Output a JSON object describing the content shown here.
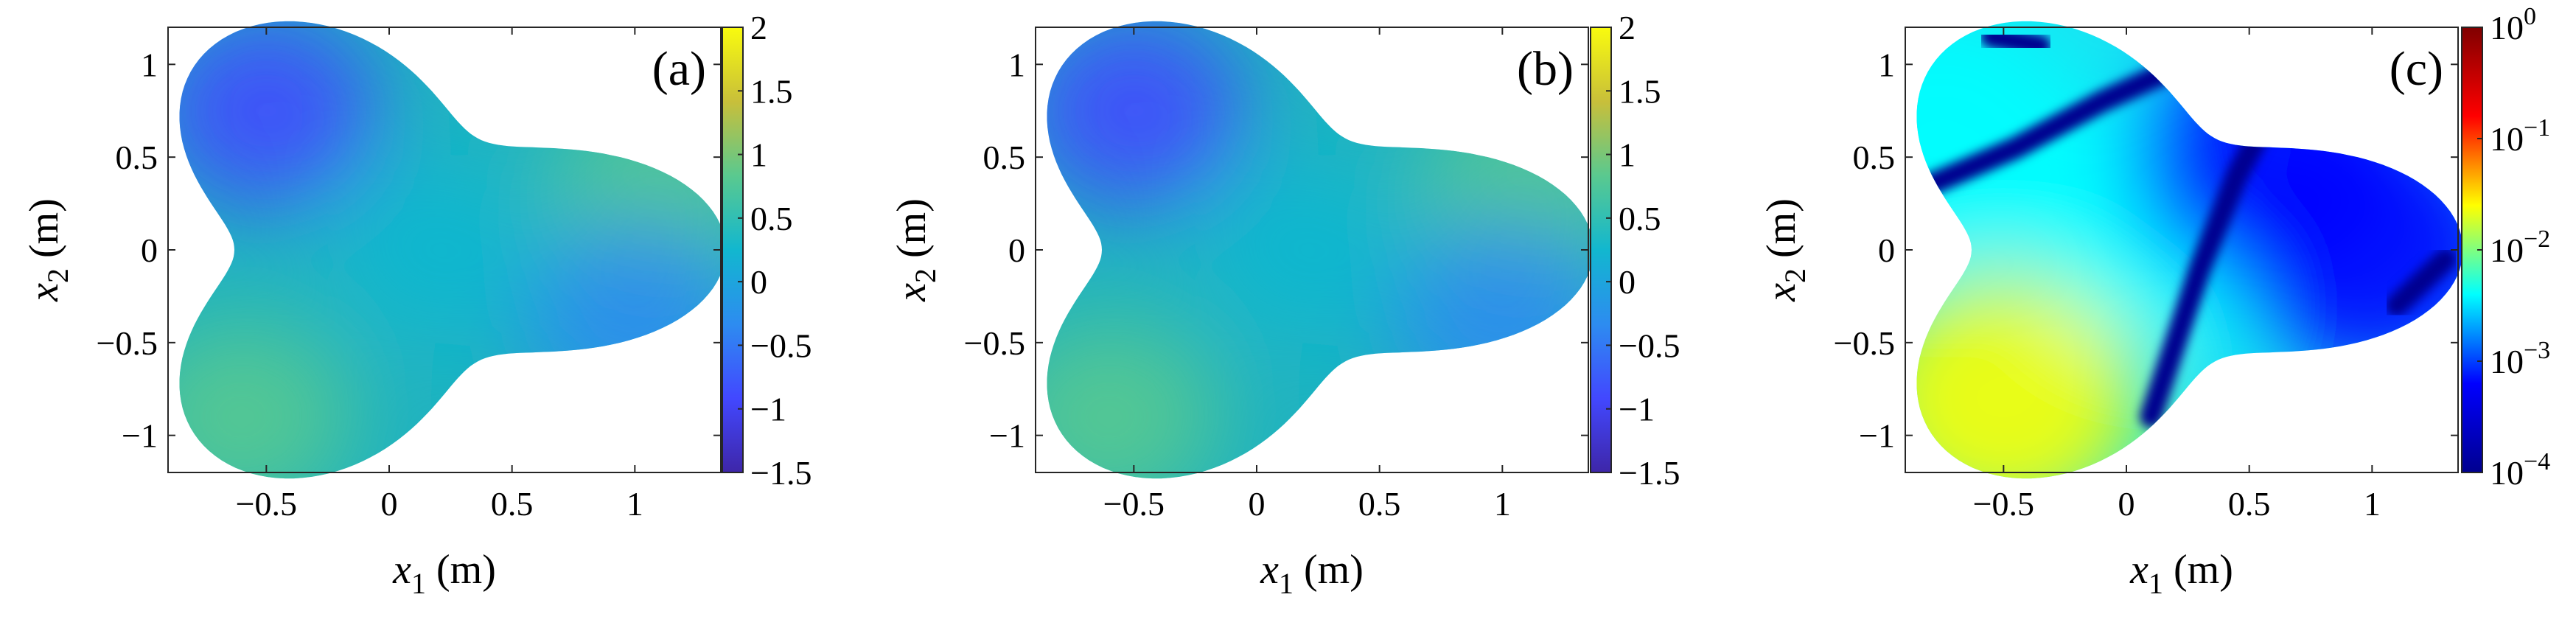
{
  "colors": {
    "parula": [
      "#3e26a8",
      "#4248ff",
      "#2d8cf0",
      "#12b7cf",
      "#5ac98f",
      "#c8bf3a",
      "#f9fb0e"
    ],
    "jet": [
      "#00008f",
      "#0000ff",
      "#00ffff",
      "#ffff00",
      "#ff0000",
      "#800000"
    ]
  },
  "chart_data": [
    {
      "type": "heatmap",
      "panel_label": "(a)",
      "xlabel": {
        "var": "x",
        "sub": "1",
        "unit": " (m)"
      },
      "ylabel": {
        "var": "x",
        "sub": "2",
        "unit": " (m)"
      },
      "xlim": [
        -0.9,
        1.35
      ],
      "ylim": [
        -1.2,
        1.2
      ],
      "xticks": [
        -0.5,
        0,
        0.5,
        1
      ],
      "xtick_labels": [
        "−0.5",
        "0",
        "0.5",
        "1"
      ],
      "yticks": [
        1,
        0.5,
        0,
        -0.5,
        -1
      ],
      "ytick_labels": [
        "1",
        "0.5",
        "0",
        "−0.5",
        "−1"
      ],
      "colorbar": {
        "scale": "linear",
        "range": [
          -1.5,
          2
        ],
        "ticks": [
          2,
          1.5,
          1,
          0.5,
          0,
          -0.5,
          -1,
          -1.5
        ],
        "tick_labels": [
          "2",
          "1.5",
          "1",
          "0.5",
          "0",
          "−0.5",
          "−1",
          "−1.5"
        ],
        "colormap": "parula"
      },
      "domain": "trefoil",
      "regions": [
        {
          "region": "upper-left lobe",
          "x": -0.5,
          "y": 0.75,
          "value": -0.8
        },
        {
          "region": "lower-left lobe",
          "x": -0.6,
          "y": -0.9,
          "value": 0.9
        },
        {
          "region": "right lobe upper edge",
          "x": 1.1,
          "y": 0.3,
          "value": 0.7
        },
        {
          "region": "right lobe lower edge",
          "x": 1.0,
          "y": -0.35,
          "value": -0.6
        },
        {
          "region": "center",
          "x": 0.2,
          "y": 0,
          "value": 0.1
        }
      ]
    },
    {
      "type": "heatmap",
      "panel_label": "(b)",
      "xlabel": {
        "var": "x",
        "sub": "1",
        "unit": " (m)"
      },
      "ylabel": {
        "var": "x",
        "sub": "2",
        "unit": " (m)"
      },
      "xlim": [
        -0.9,
        1.35
      ],
      "ylim": [
        -1.2,
        1.2
      ],
      "xticks": [
        -0.5,
        0,
        0.5,
        1
      ],
      "xtick_labels": [
        "−0.5",
        "0",
        "0.5",
        "1"
      ],
      "yticks": [
        1,
        0.5,
        0,
        -0.5,
        -1
      ],
      "ytick_labels": [
        "1",
        "0.5",
        "0",
        "−0.5",
        "−1"
      ],
      "colorbar": {
        "scale": "linear",
        "range": [
          -1.5,
          2
        ],
        "ticks": [
          2,
          1.5,
          1,
          0.5,
          0,
          -0.5,
          -1,
          -1.5
        ],
        "tick_labels": [
          "2",
          "1.5",
          "1",
          "0.5",
          "0",
          "−0.5",
          "−1",
          "−1.5"
        ],
        "colormap": "parula"
      },
      "domain": "trefoil",
      "regions": [
        {
          "region": "upper-left lobe",
          "x": -0.5,
          "y": 0.75,
          "value": -0.8
        },
        {
          "region": "lower-left lobe",
          "x": -0.6,
          "y": -0.9,
          "value": 0.9
        },
        {
          "region": "right lobe upper edge",
          "x": 1.1,
          "y": 0.3,
          "value": 0.7
        },
        {
          "region": "right lobe lower edge",
          "x": 1.0,
          "y": -0.35,
          "value": -0.6
        },
        {
          "region": "center",
          "x": 0.2,
          "y": 0,
          "value": 0.1
        }
      ]
    },
    {
      "type": "heatmap",
      "panel_label": "(c)",
      "xlabel": {
        "var": "x",
        "sub": "1",
        "unit": " (m)"
      },
      "ylabel": {
        "var": "x",
        "sub": "2",
        "unit": " (m)"
      },
      "xlim": [
        -0.9,
        1.35
      ],
      "ylim": [
        -1.2,
        1.2
      ],
      "xticks": [
        -0.5,
        0,
        0.5,
        1
      ],
      "xtick_labels": [
        "−0.5",
        "0",
        "0.5",
        "1"
      ],
      "yticks": [
        1,
        0.5,
        0,
        -0.5,
        -1
      ],
      "ytick_labels": [
        "1",
        "0.5",
        "0",
        "−0.5",
        "−1"
      ],
      "colorbar": {
        "scale": "log",
        "range": [
          0.0001,
          1
        ],
        "ticks": [
          1,
          0.1,
          0.01,
          0.001,
          0.0001
        ],
        "tick_labels": [
          {
            "base": "10",
            "exp": "0"
          },
          {
            "base": "10",
            "exp": "−1"
          },
          {
            "base": "10",
            "exp": "−2"
          },
          {
            "base": "10",
            "exp": "−3"
          },
          {
            "base": "10",
            "exp": "−4"
          }
        ],
        "colormap": "jet"
      },
      "domain": "trefoil",
      "regions": [
        {
          "region": "lower-left lobe",
          "x": -0.5,
          "y": -0.8,
          "value": 0.01
        },
        {
          "region": "left lobe tip",
          "x": -0.75,
          "y": 0.6,
          "value": 0.007
        },
        {
          "region": "center",
          "x": 0.2,
          "y": 0.2,
          "value": 0.002
        },
        {
          "region": "upper-right band",
          "x": 0.6,
          "y": 0.5,
          "value": 0.0003
        },
        {
          "region": "right lobe",
          "x": 1.0,
          "y": 0,
          "value": 0.0005
        }
      ],
      "zero_lines": [
        [
          [
            -0.8,
            0.35
          ],
          [
            -0.45,
            0.55
          ],
          [
            -0.1,
            0.8
          ],
          [
            0.15,
            0.95
          ]
        ],
        [
          [
            -0.55,
            1.15
          ],
          [
            -0.35,
            1.1
          ]
        ],
        [
          [
            0.1,
            -0.9
          ],
          [
            0.2,
            -0.5
          ],
          [
            0.3,
            -0.1
          ],
          [
            0.45,
            0.4
          ],
          [
            0.55,
            0.65
          ]
        ],
        [
          [
            1.1,
            -0.3
          ],
          [
            1.3,
            -0.05
          ]
        ]
      ]
    }
  ]
}
